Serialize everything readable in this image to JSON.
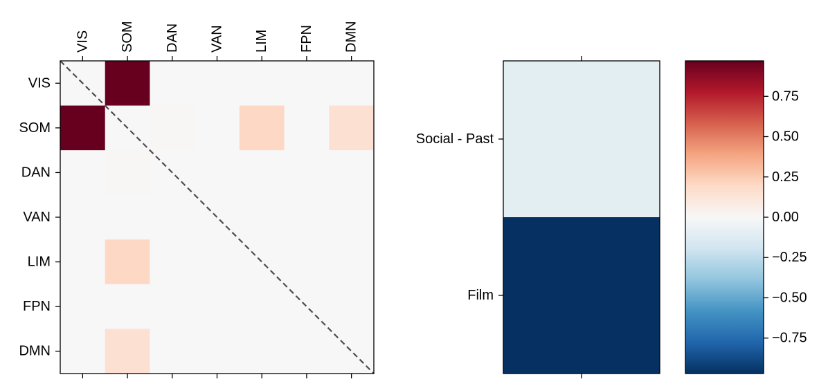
{
  "chart_data": [
    {
      "type": "heatmap",
      "title": "",
      "xlabel": "",
      "ylabel": "",
      "x_categories": [
        "VIS",
        "SOM",
        "DAN",
        "VAN",
        "LIM",
        "FPN",
        "DMN"
      ],
      "y_categories": [
        "VIS",
        "SOM",
        "DAN",
        "VAN",
        "LIM",
        "FPN",
        "DMN"
      ],
      "values": [
        [
          0,
          0.97,
          0,
          0,
          0,
          0,
          0
        ],
        [
          0.97,
          0,
          0.01,
          0,
          0.2,
          0,
          0.15
        ],
        [
          0,
          0.01,
          0,
          0,
          0,
          0,
          0
        ],
        [
          0,
          0,
          0,
          0,
          0,
          0,
          0
        ],
        [
          0,
          0.2,
          0,
          0,
          0,
          0,
          0
        ],
        [
          0,
          0,
          0,
          0,
          0,
          0,
          0
        ],
        [
          0,
          0.15,
          0,
          0,
          0,
          0,
          0
        ]
      ],
      "diagonal_line": "dashed",
      "diagonal_color": "#4d4d4d",
      "colormap": "RdBu_r",
      "vmin": -0.97,
      "vmax": 0.97
    },
    {
      "type": "heatmap",
      "title": "",
      "xlabel": "",
      "ylabel": "",
      "y_categories": [
        "Social - Past",
        "Film"
      ],
      "values": [
        [
          -0.1
        ],
        [
          -0.97
        ]
      ],
      "colormap": "RdBu_r",
      "vmin": -0.97,
      "vmax": 0.97
    },
    {
      "type": "colorbar",
      "colormap": "RdBu_r",
      "vmin": -0.97,
      "vmax": 0.97,
      "ticks": [
        -0.75,
        -0.5,
        -0.25,
        0,
        0.25,
        0.5,
        0.75
      ],
      "tick_labels": [
        "−0.75",
        "−0.50",
        "−0.25",
        "0.00",
        "0.25",
        "0.50",
        "0.75"
      ]
    }
  ]
}
